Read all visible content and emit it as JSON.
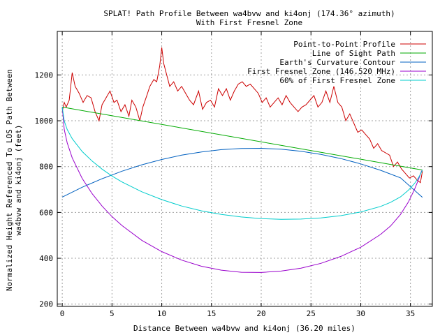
{
  "chart_data": {
    "type": "line",
    "title_line1": "SPLAT! Path Profile Between wa4bvw and ki4onj (174.36° azimuth)",
    "title_line2": "With First Fresnel Zone",
    "xlabel": "Distance Between wa4bvw and ki4onj (36.20 miles)",
    "ylabel_line1": "Normalized Height Referenced To LOS Path Between",
    "ylabel_line2": "wa4bvw and ki4onj (feet)",
    "xlim": [
      -0.5,
      37.2
    ],
    "ylim": [
      190,
      1390
    ],
    "xticks": [
      0,
      5,
      10,
      15,
      20,
      25,
      30,
      35
    ],
    "yticks": [
      200,
      400,
      600,
      800,
      1000,
      1200
    ],
    "grid": true,
    "legend_position": "top-right",
    "series": [
      {
        "name": "Point-to-Point Profile",
        "color": "#cc0000",
        "x": [
          0,
          0.2,
          0.4,
          0.7,
          1.0,
          1.3,
          1.7,
          2.1,
          2.5,
          2.9,
          3.3,
          3.7,
          4.0,
          4.4,
          4.8,
          5.2,
          5.5,
          5.9,
          6.3,
          6.7,
          7.0,
          7.4,
          7.8,
          8.1,
          8.5,
          8.8,
          9.2,
          9.5,
          9.8,
          10.0,
          10.2,
          10.5,
          10.8,
          11.2,
          11.6,
          12.0,
          12.4,
          12.8,
          13.2,
          13.7,
          14.1,
          14.5,
          14.9,
          15.3,
          15.7,
          16.1,
          16.5,
          16.9,
          17.3,
          17.7,
          18.1,
          18.5,
          18.9,
          19.3,
          19.7,
          20.1,
          20.5,
          20.9,
          21.3,
          21.7,
          22.1,
          22.5,
          22.9,
          23.3,
          23.7,
          24.1,
          24.5,
          24.9,
          25.3,
          25.7,
          26.1,
          26.5,
          26.9,
          27.3,
          27.7,
          28.1,
          28.5,
          28.9,
          29.3,
          29.7,
          30.1,
          30.5,
          30.9,
          31.3,
          31.7,
          32.1,
          32.5,
          32.9,
          33.3,
          33.7,
          34.1,
          34.5,
          34.9,
          35.3,
          35.7,
          36.0,
          36.2
        ],
        "y": [
          1040,
          1080,
          1060,
          1090,
          1210,
          1150,
          1120,
          1080,
          1110,
          1100,
          1040,
          1000,
          1070,
          1100,
          1130,
          1080,
          1090,
          1040,
          1070,
          1020,
          1090,
          1060,
          1000,
          1060,
          1110,
          1150,
          1180,
          1170,
          1240,
          1320,
          1250,
          1200,
          1150,
          1170,
          1130,
          1150,
          1120,
          1090,
          1070,
          1130,
          1050,
          1080,
          1090,
          1060,
          1140,
          1110,
          1140,
          1090,
          1130,
          1160,
          1170,
          1150,
          1160,
          1140,
          1120,
          1080,
          1100,
          1060,
          1080,
          1100,
          1070,
          1110,
          1080,
          1060,
          1040,
          1060,
          1070,
          1090,
          1110,
          1060,
          1080,
          1130,
          1080,
          1150,
          1080,
          1060,
          1000,
          1030,
          990,
          950,
          960,
          940,
          920,
          880,
          900,
          870,
          860,
          850,
          800,
          820,
          790,
          770,
          750,
          760,
          740,
          730,
          780
        ]
      },
      {
        "name": "Line of Sight Path",
        "color": "#00aa00",
        "x": [
          0,
          36.2
        ],
        "y": [
          1060,
          785
        ]
      },
      {
        "name": "Earth's Curvature Contour",
        "color": "#0060c0",
        "x": [
          0,
          2,
          4,
          6,
          8,
          10,
          12,
          14,
          16,
          18,
          20,
          22,
          24,
          26,
          28,
          30,
          32,
          34,
          36.2
        ],
        "y": [
          667,
          710,
          747,
          780,
          808,
          831,
          850,
          864,
          874,
          879,
          880,
          876,
          867,
          853,
          835,
          812,
          784,
          751,
          666
        ]
      },
      {
        "name": "First Fresnel Zone (146.520 MHz)",
        "color": "#9900cc",
        "x": [
          0,
          0.2,
          0.5,
          1,
          2,
          3,
          4,
          5,
          6,
          8,
          10,
          12,
          14,
          16,
          18,
          20,
          22,
          24,
          26,
          28,
          30,
          32,
          33,
          34,
          34.8,
          35.4,
          35.8,
          36.1,
          36.2
        ],
        "y": [
          1060,
          962,
          904,
          838,
          749,
          682,
          628,
          582,
          543,
          478,
          429,
          392,
          365,
          348,
          339,
          338,
          344,
          357,
          378,
          408,
          448,
          504,
          541,
          591,
          646,
          700,
          743,
          779,
          785
        ]
      },
      {
        "name": "60% of First Fresnel Zone",
        "color": "#00cccc",
        "x": [
          0,
          0.2,
          0.5,
          1,
          2,
          3,
          4,
          5,
          6,
          8,
          10,
          12,
          14,
          16,
          18,
          20,
          22,
          24,
          26,
          28,
          30,
          32,
          33,
          34,
          34.8,
          35.4,
          35.8,
          36.1,
          36.2
        ],
        "y": [
          1060,
          999,
          962,
          922,
          866,
          824,
          789,
          759,
          733,
          690,
          656,
          628,
          607,
          591,
          580,
          573,
          570,
          571,
          576,
          586,
          602,
          626,
          644,
          668,
          697,
          726,
          751,
          775,
          785
        ]
      }
    ]
  }
}
